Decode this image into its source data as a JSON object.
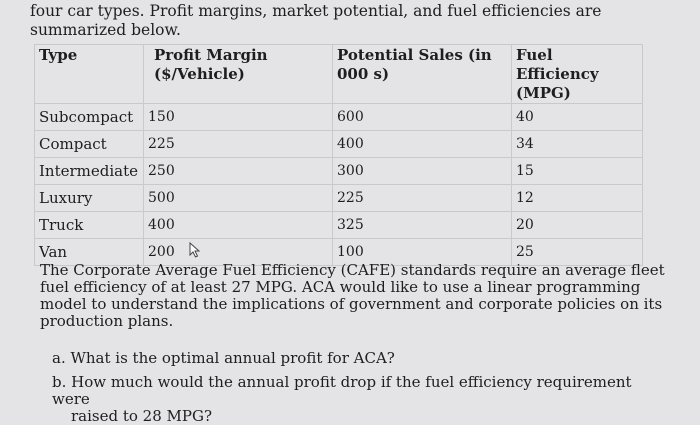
{
  "intro_lines": [
    "four car types. Profit margins, market potential, and fuel efficiencies are",
    "summarized below."
  ],
  "headers": {
    "type": "Type",
    "profit_l1": "Profit Margin",
    "profit_l2": "($/Vehicle)",
    "sales_l1": "Potential Sales (in",
    "sales_l2": "000 s)",
    "mpg_l1": "Fuel Efficiency",
    "mpg_l2": "(MPG)"
  },
  "rows": [
    {
      "type": "Subcompact",
      "profit": "150",
      "sales": "600",
      "mpg": "40"
    },
    {
      "type": "Compact",
      "profit": "225",
      "sales": "400",
      "mpg": "34"
    },
    {
      "type": "Intermediate",
      "profit": "250",
      "sales": "300",
      "mpg": "15"
    },
    {
      "type": "Luxury",
      "profit": "500",
      "sales": "225",
      "mpg": "12"
    },
    {
      "type": "Truck",
      "profit": "400",
      "sales": "325",
      "mpg": "20"
    },
    {
      "type": "Van",
      "profit": "200",
      "sales": "100",
      "mpg": "25"
    }
  ],
  "paragraph": "The Corporate Average Fuel Efficiency (CAFE) standards require an average fleet fuel efficiency of at least 27 MPG. ACA would like to use a linear programming model to understand the implications of government and corporate policies on its production plans.",
  "question_a": "a. What is the optimal annual profit for ACA?",
  "question_b_l1": "b. How much would the annual profit drop if the fuel efficiency requirement were",
  "question_b_l2": "raised to 28 MPG?"
}
